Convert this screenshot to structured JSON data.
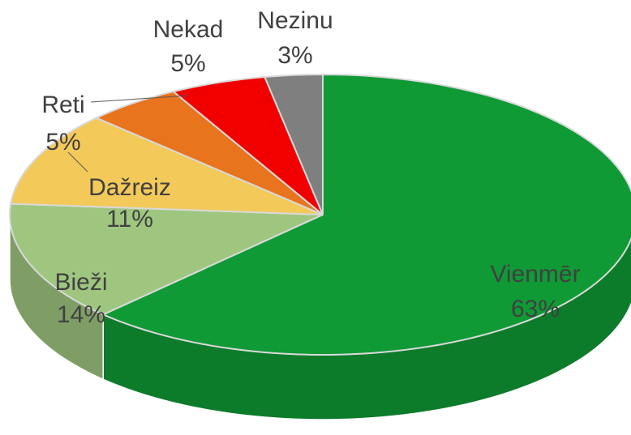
{
  "chart_data": {
    "type": "pie",
    "categories": [
      "Vienmēr",
      "Bieži",
      "Dažreiz",
      "Reti",
      "Nekad",
      "Nezinu"
    ],
    "values": [
      63,
      14,
      11,
      5,
      5,
      3
    ],
    "value_labels": [
      "63%",
      "14%",
      "11%",
      "5%",
      "5%",
      "3%"
    ],
    "colors": [
      "#0f9a35",
      "#9fc67f",
      "#f3c95a",
      "#e8741e",
      "#f20000",
      "#7f7f7f"
    ]
  }
}
